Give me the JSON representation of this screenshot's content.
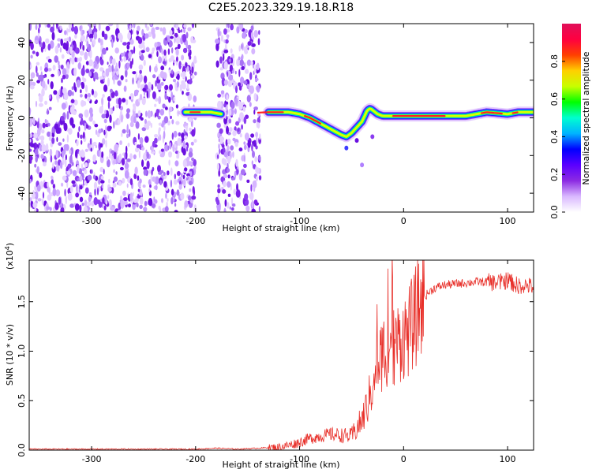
{
  "figure": {
    "title": "C2E5.2023.329.19.18.R18"
  },
  "chart_data": [
    {
      "type": "heatmap",
      "panel": "top",
      "title": "",
      "xlabel": "Height of straight line (km)",
      "ylabel": "Frequency (Hz)",
      "xlim": [
        -360,
        125
      ],
      "ylim": [
        -50,
        50
      ],
      "xticks": [
        -300,
        -200,
        -100,
        0,
        100
      ],
      "xtick_labels": [
        "-300",
        "-200",
        "-100",
        "0",
        "100"
      ],
      "yticks": [
        -40,
        -20,
        0,
        20,
        40
      ],
      "ytick_labels": [
        "-40",
        "-20",
        "0",
        "20",
        "40"
      ],
      "noise_regions": [
        {
          "x_start": -360,
          "x_end": -200
        },
        {
          "x_start": -180,
          "x_end": -138
        }
      ],
      "ridge": {
        "x": [
          -210,
          -185,
          -175,
          -130,
          -120,
          -110,
          -100,
          -90,
          -80,
          -70,
          -60,
          -55,
          -50,
          -45,
          -40,
          -35,
          -32,
          -25,
          -20,
          0,
          20,
          60,
          80,
          100,
          110,
          125
        ],
        "y": [
          3,
          3,
          2,
          3,
          3,
          3,
          2,
          0,
          -3,
          -6,
          -9,
          -10,
          -8,
          -5,
          -2,
          4,
          5,
          2,
          1,
          1,
          1,
          1,
          3,
          2,
          3,
          3
        ]
      },
      "colorbar": {
        "label": "Normalized spectral amplitude",
        "range": [
          0.0,
          1.0
        ],
        "ticks": [
          0.0,
          0.2,
          0.4,
          0.6,
          0.8
        ],
        "tick_labels": [
          "0.0",
          "0.2",
          "0.4",
          "0.6",
          "0.8"
        ],
        "colors": [
          "#ffffff",
          "#d9b8ff",
          "#8c2be2",
          "#5a00ff",
          "#0000ff",
          "#00b3ff",
          "#00ffd0",
          "#00ff00",
          "#c8ff00",
          "#ffd000",
          "#ff4000",
          "#ff0040",
          "#e0105a"
        ]
      }
    },
    {
      "type": "line",
      "panel": "bottom",
      "title": "",
      "xlabel": "Height of straight line (km)",
      "ylabel": "SNR (10 * v/v)",
      "y_scale_note": "(x10^4)",
      "y_scale_base": "(x10",
      "y_scale_exp": "4",
      "y_scale_close": ")",
      "xlim": [
        -360,
        125
      ],
      "ylim": [
        0.0,
        1.92
      ],
      "xticks": [
        -300,
        -200,
        -100,
        0,
        100
      ],
      "xtick_labels": [
        "-300",
        "-200",
        "-100",
        "0",
        "100"
      ],
      "yticks": [
        0.0,
        0.5,
        1.0,
        1.5
      ],
      "ytick_labels": [
        "0.0",
        "0.5",
        "1.0",
        "1.5"
      ],
      "line_color": "#e8302a",
      "series": [
        {
          "name": "SNR",
          "x": [
            -360,
            -300,
            -250,
            -200,
            -180,
            -160,
            -140,
            -120,
            -110,
            -100,
            -90,
            -80,
            -70,
            -60,
            -50,
            -45,
            -40,
            -35,
            -30,
            -25,
            -20,
            -15,
            -10,
            -5,
            0,
            5,
            10,
            15,
            20,
            25,
            30,
            40,
            50,
            60,
            70,
            80,
            90,
            95,
            100,
            105,
            110,
            115,
            125
          ],
          "y": [
            0.01,
            0.01,
            0.01,
            0.01,
            0.02,
            0.01,
            0.02,
            0.03,
            0.05,
            0.08,
            0.12,
            0.14,
            0.16,
            0.15,
            0.14,
            0.22,
            0.3,
            0.45,
            0.65,
            0.85,
            1.0,
            1.05,
            1.05,
            1.1,
            1.15,
            1.2,
            1.3,
            1.45,
            1.55,
            1.6,
            1.64,
            1.67,
            1.68,
            1.69,
            1.7,
            1.7,
            1.69,
            1.7,
            1.72,
            1.69,
            1.66,
            1.67,
            1.65
          ]
        }
      ]
    }
  ]
}
